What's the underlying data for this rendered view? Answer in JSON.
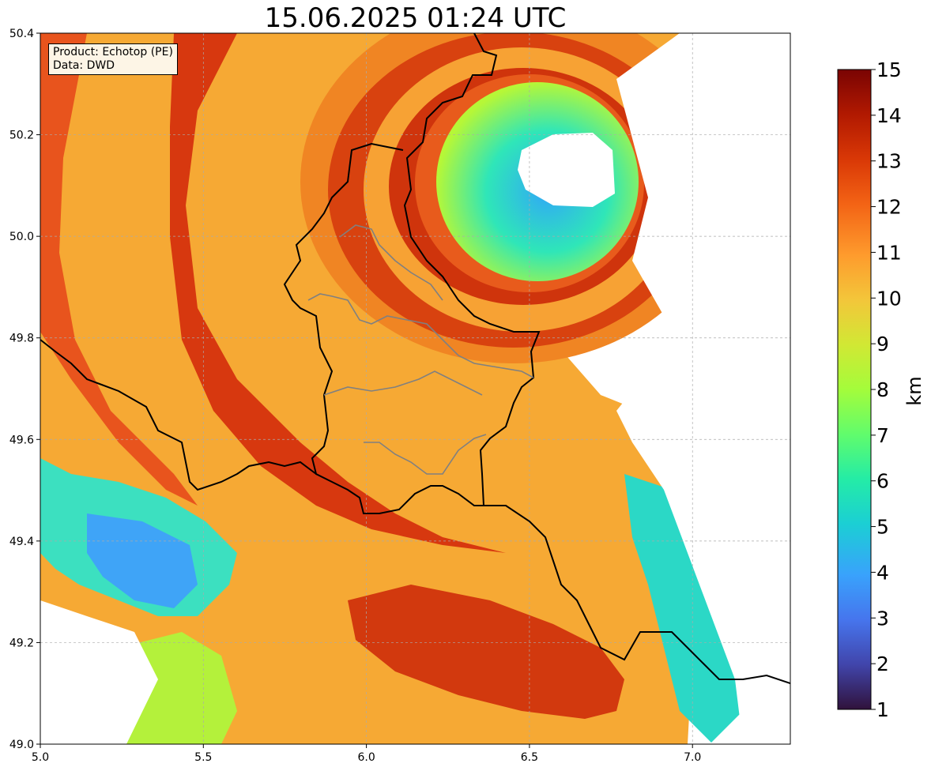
{
  "title": "15.06.2025 01:24 UTC",
  "info": {
    "product": "Product: Echotop (PE)",
    "data": "Data: DWD"
  },
  "chart_data": {
    "type": "heatmap",
    "title": "15.06.2025 01:24 UTC",
    "x_range": [
      5.0,
      7.3
    ],
    "y_range": [
      49.0,
      50.4
    ],
    "x_ticks": [
      "5.0",
      "5.5",
      "6.0",
      "6.5",
      "7.0"
    ],
    "y_ticks": [
      "49.0",
      "49.2",
      "49.4",
      "49.6",
      "49.8",
      "50.0",
      "50.2",
      "50.4"
    ],
    "grid": true,
    "colormap": "turbo",
    "radar_site": [
      6.55,
      50.11
    ],
    "colorbar": {
      "label": "km",
      "range": [
        1,
        15
      ],
      "ticks": [
        "1",
        "2",
        "3",
        "4",
        "5",
        "6",
        "7",
        "8",
        "9",
        "10",
        "11",
        "12",
        "13",
        "14",
        "15"
      ]
    }
  }
}
